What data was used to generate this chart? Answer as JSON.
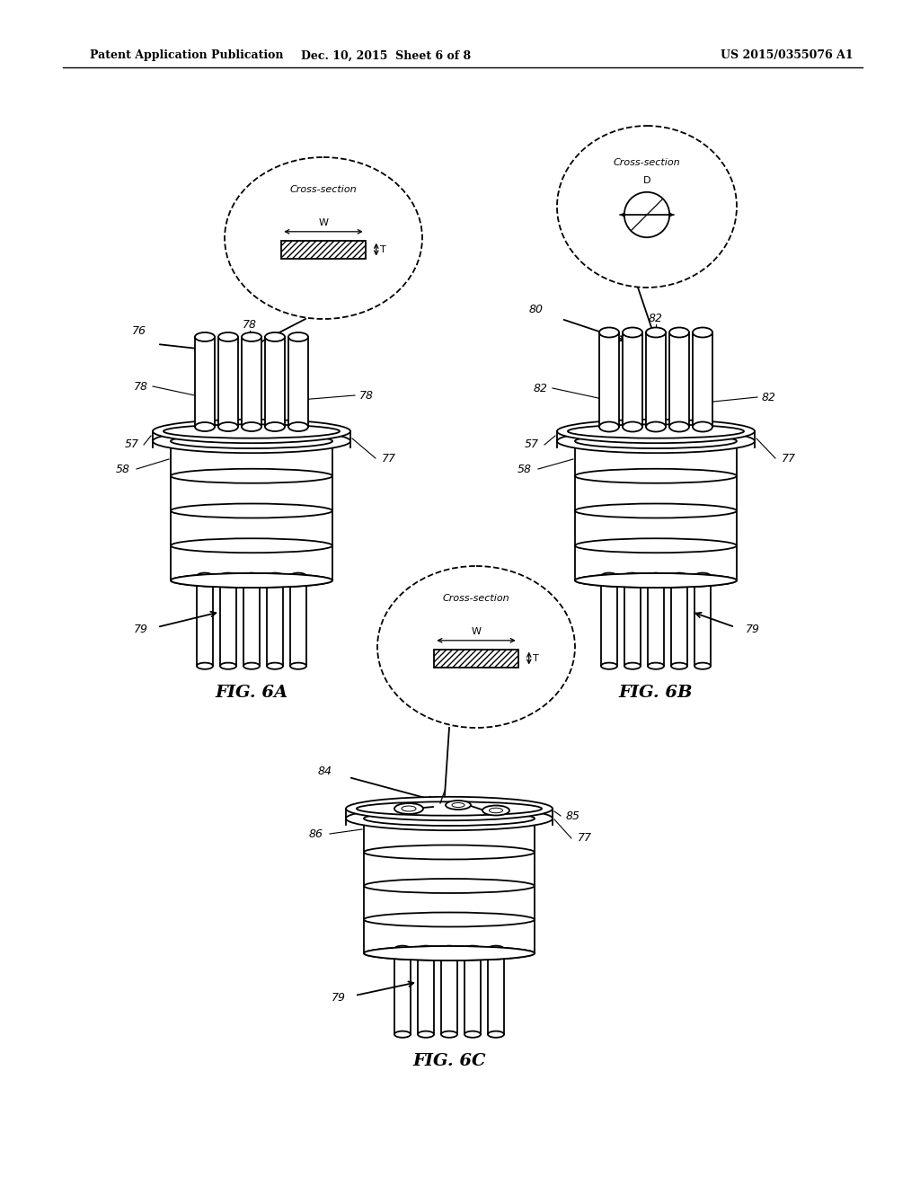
{
  "background_color": "#ffffff",
  "header_text": "Patent Application Publication",
  "header_date": "Dec. 10, 2015  Sheet 6 of 8",
  "header_patent": "US 2015/0355076 A1",
  "fig6a_label": "FIG. 6A",
  "fig6b_label": "FIG. 6B",
  "fig6c_label": "FIG. 6C"
}
